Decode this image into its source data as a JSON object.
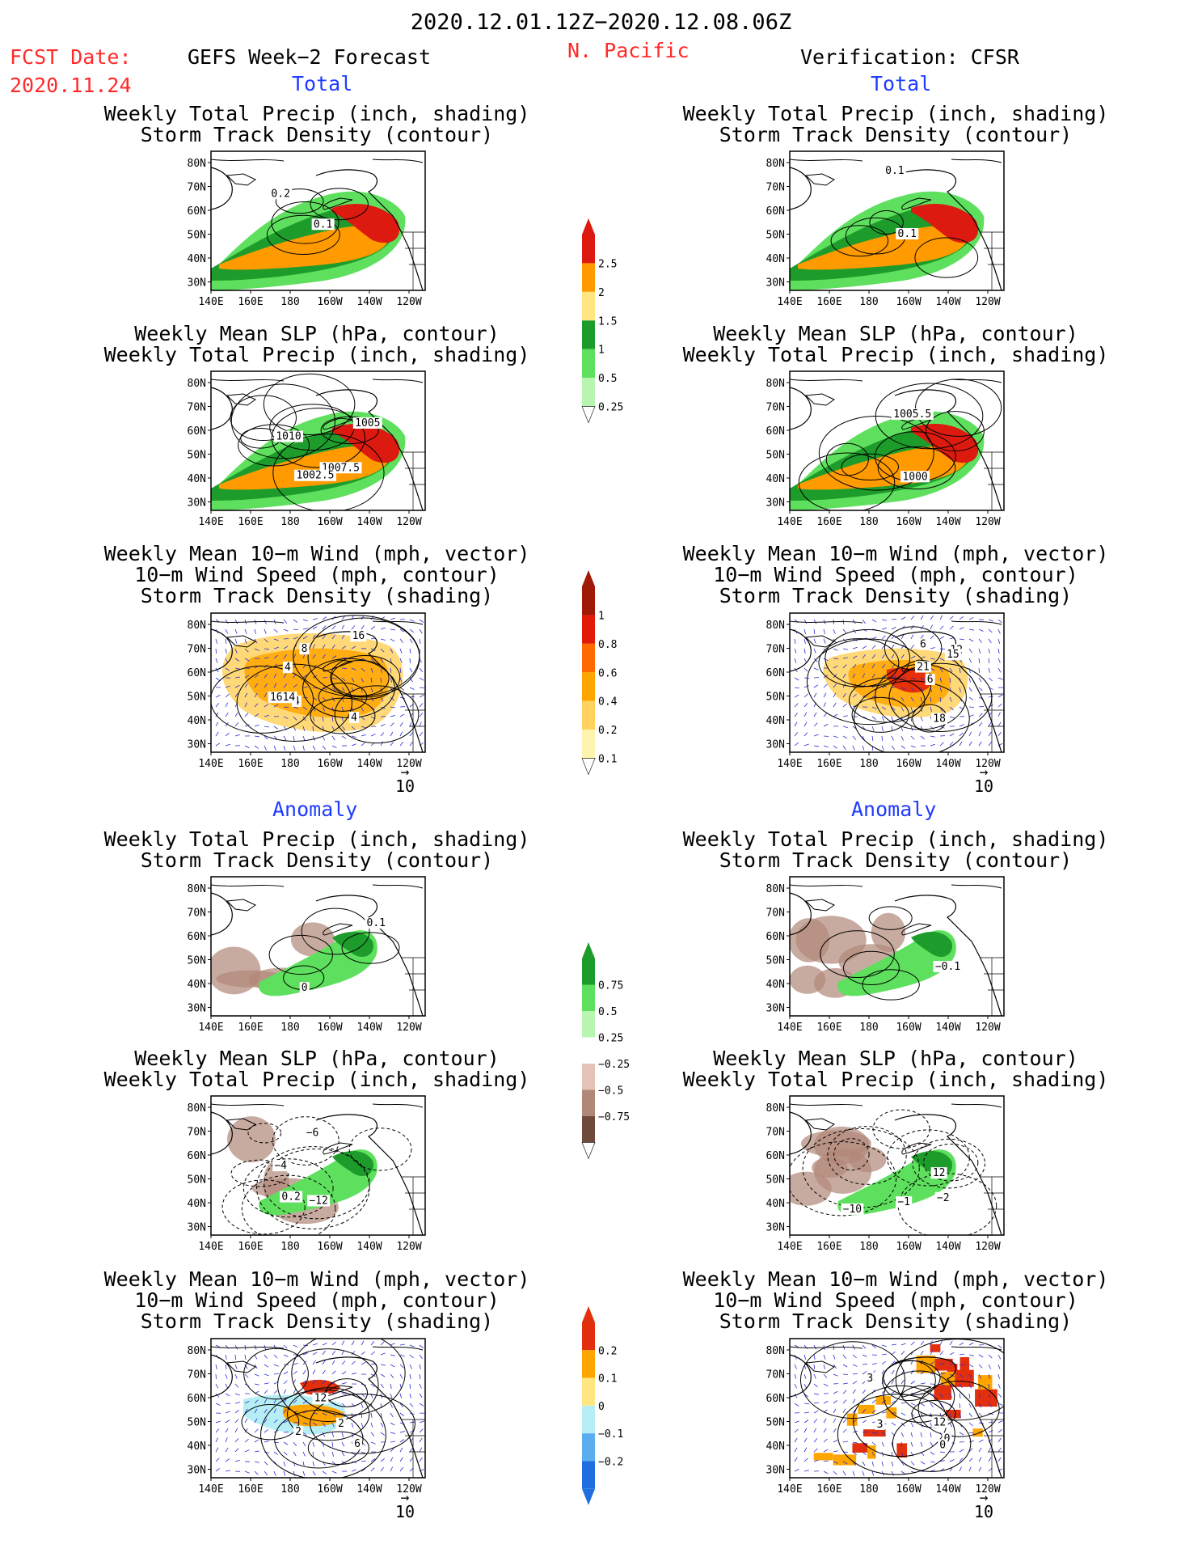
{
  "header": {
    "main_title": "2020.12.01.12Z−2020.12.08.06Z",
    "fcst_label": "FCST Date:",
    "fcst_date": "2020.11.24",
    "left_title": "GEFS Week−2 Forecast",
    "region": "N. Pacific",
    "right_title": "Verification: CFSR"
  },
  "sections": {
    "total": "Total",
    "anomaly": "Anomaly"
  },
  "panel_titles": {
    "precip_storm": [
      "Weekly Total Precip (inch, shading)",
      "Storm Track Density (contour)"
    ],
    "slp_precip": [
      "Weekly Mean SLP (hPa, contour)",
      "Weekly Total Precip (inch, shading)"
    ],
    "wind_storm": [
      "Weekly Mean 10−m Wind (mph, vector)",
      "10−m Wind Speed (mph, contour)",
      "Storm Track Density (shading)"
    ]
  },
  "axes": {
    "lat_ticks": [
      "80N",
      "70N",
      "60N",
      "50N",
      "40N",
      "30N"
    ],
    "lon_ticks": [
      "140E",
      "160E",
      "180",
      "160W",
      "140W",
      "120W"
    ]
  },
  "vector_ref": "10",
  "colorbars": {
    "precip_total": {
      "levels": [
        "2.5",
        "2",
        "1.5",
        "1",
        "0.5",
        "0.25"
      ],
      "colors": [
        "#dd1a10",
        "#ff9a00",
        "#ffe680",
        "#1e9c2b",
        "#5ee05e",
        "#b8f5b0"
      ],
      "top_color": "#dd1a10"
    },
    "storm_total": {
      "levels": [
        "1",
        "0.8",
        "0.6",
        "0.4",
        "0.2",
        "0.1"
      ],
      "colors": [
        "#a01808",
        "#e21a08",
        "#ff6a00",
        "#ffa500",
        "#ffd260",
        "#fff3b0"
      ],
      "top_color": "#a01808"
    },
    "precip_anom": {
      "levels": [
        "0.75",
        "0.5",
        "0.25",
        "−0.25",
        "−0.5",
        "−0.75"
      ],
      "colors": [
        "#1e9c2b",
        "#5ee05e",
        "#b8f5b0",
        "#ffffff",
        "#e2c3b6",
        "#b08878",
        "#6e4a3c"
      ],
      "top_color": "#1e9c2b"
    },
    "storm_anom": {
      "levels": [
        "0.2",
        "0.1",
        "0",
        "−0.1",
        "−0.2"
      ],
      "colors": [
        "#e2300e",
        "#ffa500",
        "#ffe680",
        "#b6eef6",
        "#5aaef0",
        "#1e6ee0"
      ],
      "top_color": "#e2300e"
    }
  },
  "panels": [
    {
      "id": "fcst-total-precip",
      "shade": "precip",
      "labels": [
        "0.1",
        "0.2"
      ]
    },
    {
      "id": "fcst-total-slp",
      "shade": "precip",
      "labels": [
        "1007.5",
        "1010",
        "1005",
        "1002.5"
      ]
    },
    {
      "id": "fcst-total-wind",
      "shade": "storm",
      "labels": [
        "16",
        "4",
        "8",
        "4",
        "4",
        "1614"
      ]
    },
    {
      "id": "fcst-anom-precip",
      "shade": "anom",
      "labels": [
        "0.1",
        "0"
      ]
    },
    {
      "id": "fcst-anom-slp",
      "shade": "anom",
      "labels": [
        "−4",
        "−6",
        "0.2",
        "−12"
      ]
    },
    {
      "id": "fcst-anom-wind",
      "shade": "stanom",
      "labels": [
        "2",
        "12",
        "2",
        "6"
      ]
    },
    {
      "id": "verif-total-precip",
      "shade": "precip",
      "labels": [
        "0.1",
        "0.1"
      ]
    },
    {
      "id": "verif-total-slp",
      "shade": "precip",
      "labels": [
        "1005.5",
        "1000"
      ]
    },
    {
      "id": "verif-total-wind",
      "shade": "storm",
      "labels": [
        "6",
        "6",
        "12",
        "18",
        "15",
        "21"
      ]
    },
    {
      "id": "verif-anom-precip",
      "shade": "anom",
      "labels": [
        "−0.1"
      ]
    },
    {
      "id": "verif-anom-slp",
      "shade": "anom",
      "labels": [
        "−10",
        "12",
        "−2",
        "−1"
      ]
    },
    {
      "id": "verif-anom-wind",
      "shade": "stanom",
      "labels": [
        "3",
        "0",
        "3",
        "0",
        "12"
      ]
    }
  ],
  "chart_data": [
    {
      "type": "heatmap",
      "name_ref": "panel_titles.precip_storm",
      "x": [
        "140E",
        "160E",
        "180",
        "160W",
        "140W",
        "120W"
      ],
      "y": [
        "80N",
        "70N",
        "60N",
        "50N",
        "40N",
        "30N"
      ],
      "contour_labels": [
        "0.1",
        "0.2"
      ]
    },
    {
      "type": "heatmap",
      "name_ref": "panel_titles.slp_precip",
      "contour_labels": [
        "1007.5",
        "1010",
        "1005",
        "1002.5"
      ]
    },
    {
      "type": "heatmap",
      "name_ref": "panel_titles.wind_storm",
      "contour_labels": [
        "16",
        "4",
        "8",
        "1614"
      ]
    },
    {
      "type": "heatmap",
      "name_ref": "panel_titles.precip_storm",
      "contour_labels": [
        "0.1",
        "0"
      ]
    },
    {
      "type": "heatmap",
      "name_ref": "panel_titles.slp_precip",
      "contour_labels": [
        "−4",
        "−6",
        "0.2",
        "−12"
      ]
    },
    {
      "type": "heatmap",
      "name_ref": "panel_titles.wind_storm",
      "contour_labels": [
        "2",
        "12",
        "6"
      ]
    },
    {
      "type": "heatmap",
      "name_ref": "panel_titles.precip_storm",
      "contour_labels": [
        "0.1",
        "0.1"
      ]
    },
    {
      "type": "heatmap",
      "name_ref": "panel_titles.slp_precip",
      "contour_labels": [
        "1005.5",
        "1000"
      ]
    },
    {
      "type": "heatmap",
      "name_ref": "panel_titles.wind_storm",
      "contour_labels": [
        "6",
        "12",
        "18",
        "15",
        "21"
      ]
    },
    {
      "type": "heatmap",
      "name_ref": "panel_titles.precip_storm",
      "contour_labels": [
        "−0.1"
      ]
    },
    {
      "type": "heatmap",
      "name_ref": "panel_titles.slp_precip",
      "contour_labels": [
        "−10",
        "12",
        "−2",
        "−1"
      ]
    },
    {
      "type": "heatmap",
      "name_ref": "panel_titles.wind_storm",
      "contour_labels": [
        "3",
        "0",
        "12"
      ]
    }
  ]
}
